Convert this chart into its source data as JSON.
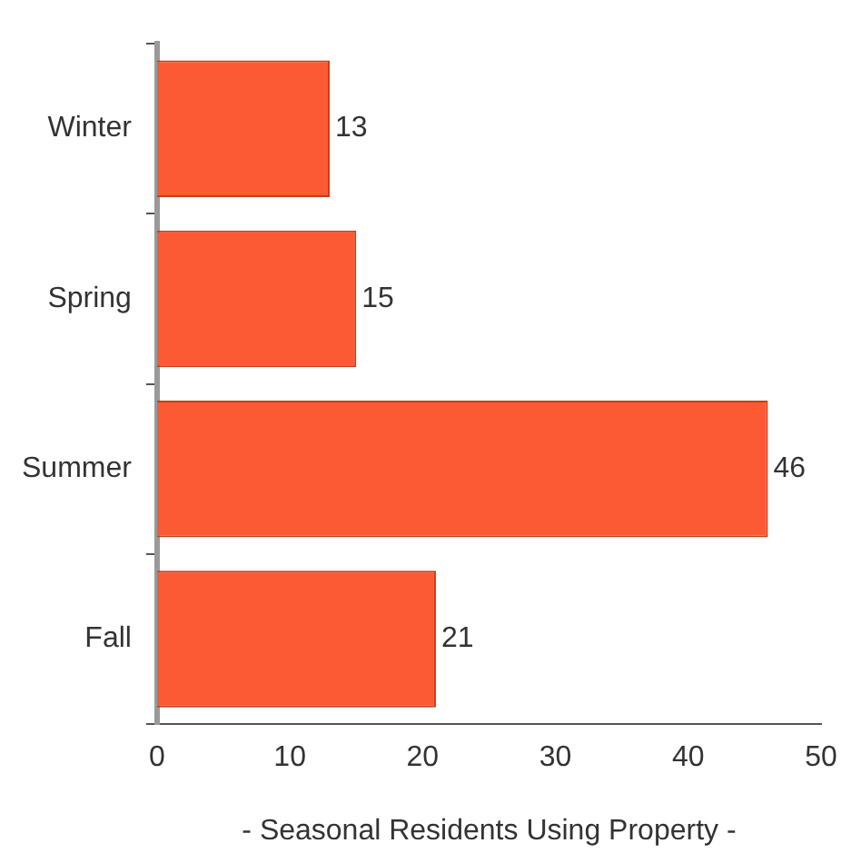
{
  "chart_data": {
    "type": "bar",
    "orientation": "horizontal",
    "categories": [
      "Winter",
      "Spring",
      "Summer",
      "Fall"
    ],
    "values": [
      13,
      15,
      46,
      21
    ],
    "color": "#fc5a34",
    "xlim": [
      0,
      50
    ],
    "xticks": [
      0,
      10,
      20,
      30,
      40,
      50
    ],
    "xlabel": "- Seasonal Residents Using Property -",
    "data_labels": true,
    "grid": false,
    "legend": false
  }
}
